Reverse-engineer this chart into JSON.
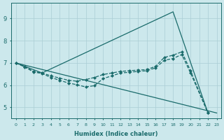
{
  "xlabel": "Humidex (Indice chaleur)",
  "background_color": "#cce8ec",
  "line_color": "#1a6b6b",
  "grid_color": "#aacdd4",
  "xlim": [
    -0.5,
    23.5
  ],
  "ylim": [
    4.5,
    9.7
  ],
  "xticks": [
    0,
    1,
    2,
    3,
    4,
    5,
    6,
    7,
    8,
    9,
    10,
    11,
    12,
    13,
    14,
    15,
    16,
    17,
    18,
    19,
    20,
    21,
    22,
    23
  ],
  "yticks": [
    5,
    6,
    7,
    8,
    9
  ],
  "series": [
    {
      "x": [
        0,
        3,
        18,
        22
      ],
      "y": [
        7.0,
        6.55,
        9.3,
        4.75
      ],
      "markers": false
    },
    {
      "x": [
        0,
        23
      ],
      "y": [
        7.0,
        4.75
      ],
      "markers": false
    },
    {
      "x": [
        0,
        1,
        2,
        3,
        4,
        5,
        6,
        7,
        8,
        9,
        10,
        11,
        12,
        13,
        14,
        15,
        16,
        17,
        18,
        19,
        20,
        22
      ],
      "y": [
        7.0,
        6.85,
        6.62,
        6.55,
        6.42,
        6.32,
        6.22,
        6.18,
        6.25,
        6.35,
        6.48,
        6.55,
        6.62,
        6.65,
        6.68,
        6.7,
        6.85,
        7.25,
        7.35,
        7.5,
        6.65,
        4.75
      ],
      "markers": true
    },
    {
      "x": [
        0,
        1,
        2,
        3,
        4,
        5,
        6,
        7,
        8,
        9,
        10,
        11,
        12,
        13,
        14,
        15,
        16,
        17,
        18,
        19,
        20,
        22
      ],
      "y": [
        7.0,
        6.82,
        6.6,
        6.52,
        6.35,
        6.22,
        6.1,
        6.02,
        5.92,
        5.98,
        6.3,
        6.42,
        6.55,
        6.58,
        6.62,
        6.65,
        6.78,
        7.12,
        7.2,
        7.38,
        6.55,
        4.75
      ],
      "markers": true
    }
  ]
}
